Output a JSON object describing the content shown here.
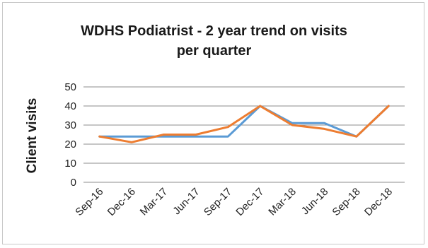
{
  "chart_data": {
    "type": "line",
    "title_line1": "WDHS Podiatrist - 2 year trend on visits",
    "title_line2": "per quarter",
    "xlabel": "",
    "ylabel": "Client visits",
    "categories": [
      "Sep-16",
      "Dec-16",
      "Mar-17",
      "Jun-17",
      "Sep-17",
      "Dec-17",
      "Mar-18",
      "Jun-18",
      "Sep-18",
      "Dec-18"
    ],
    "yticks": [
      0,
      10,
      20,
      30,
      40,
      50
    ],
    "ylim": [
      0,
      50
    ],
    "grid": true,
    "legend": "none",
    "series": [
      {
        "color": "#5b9bd5",
        "values": [
          24,
          24,
          24,
          24,
          24,
          40,
          31,
          31,
          24,
          40
        ]
      },
      {
        "color": "#ed7d31",
        "values": [
          24,
          21,
          25,
          25,
          29,
          40,
          30,
          28,
          24,
          40
        ]
      }
    ]
  }
}
